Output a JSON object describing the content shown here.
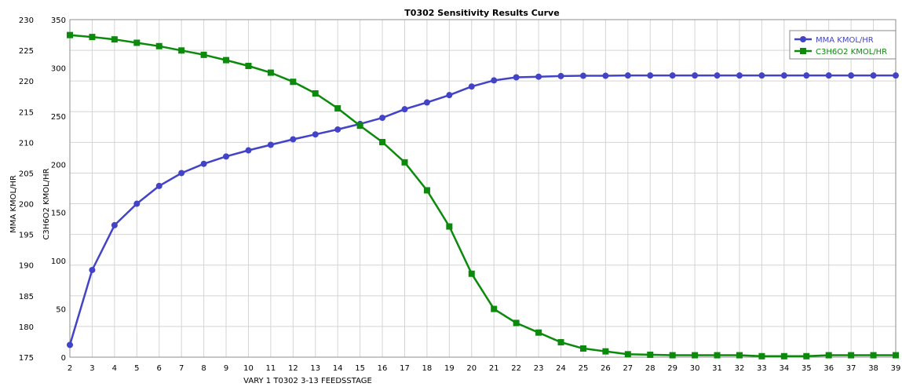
{
  "chart_data": {
    "type": "line",
    "title": "T0302 Sensitivity Results Curve",
    "xlabel": "VARY   1 T0302 3-13 FEEDSSTAGE",
    "ylabel_left": "MMA KMOL/HR",
    "ylabel_right": "C3H6O2 KMOL/HR",
    "x": [
      2,
      3,
      4,
      5,
      6,
      7,
      8,
      9,
      10,
      11,
      12,
      13,
      14,
      15,
      16,
      17,
      18,
      19,
      20,
      21,
      22,
      23,
      24,
      25,
      26,
      27,
      28,
      29,
      30,
      31,
      32,
      33,
      34,
      35,
      36,
      37,
      38,
      39
    ],
    "xlim": [
      2,
      39
    ],
    "y1lim": [
      175,
      230
    ],
    "y2lim": [
      0,
      350
    ],
    "y1_ticks": [
      175,
      180,
      185,
      190,
      195,
      200,
      205,
      210,
      215,
      220,
      225,
      230
    ],
    "y2_ticks": [
      0,
      50,
      100,
      150,
      200,
      250,
      300,
      350
    ],
    "grid": true,
    "legend_position": "top-right",
    "series": [
      {
        "name": "MMA KMOL/HR",
        "axis": "left",
        "color": "#4343c8",
        "marker": "circle",
        "values": [
          177.0,
          189.2,
          196.5,
          200.0,
          202.9,
          205.0,
          206.5,
          207.7,
          208.7,
          209.6,
          210.5,
          211.3,
          212.1,
          213.0,
          214.0,
          215.4,
          216.5,
          217.7,
          219.1,
          220.1,
          220.6,
          220.7,
          220.8,
          220.85,
          220.85,
          220.9,
          220.9,
          220.9,
          220.9,
          220.9,
          220.9,
          220.9,
          220.9,
          220.9,
          220.9,
          220.9,
          220.9,
          220.9
        ]
      },
      {
        "name": "C3H6O2 KMOL/HR",
        "axis": "right",
        "color": "#0b8a0b",
        "marker": "square",
        "values": [
          334.0,
          332.0,
          329.5,
          326.0,
          322.5,
          318.0,
          313.5,
          308.0,
          302.0,
          295.0,
          285.5,
          273.5,
          258.0,
          240.0,
          223.0,
          202.0,
          173.0,
          135.5,
          86.5,
          50.0,
          35.5,
          25.5,
          15.5,
          9.0,
          6.0,
          3.0,
          2.5,
          2.0,
          2.0,
          2.0,
          2.0,
          1.0,
          1.0,
          1.0,
          2.0,
          2.0,
          2.0,
          2.0
        ]
      }
    ]
  }
}
